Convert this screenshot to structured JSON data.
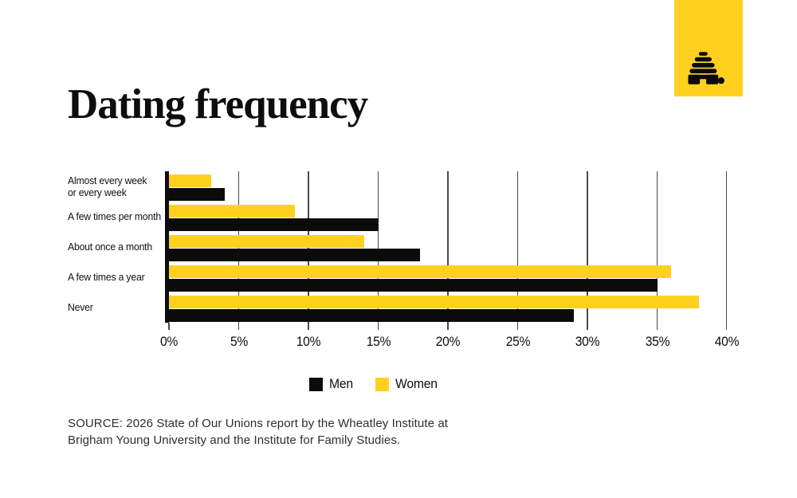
{
  "page": {
    "title": "Dating frequency",
    "source_lines": [
      "SOURCE: 2026 State of Our Unions report by the Wheatley Institute at",
      "Brigham Young University and the Institute for Family Studies."
    ],
    "logo": {
      "icon": "beehive-icon",
      "bg_color": "#FFD11E",
      "icon_color": "#0b0b0b"
    },
    "colors": {
      "accent_yellow": "#FFD11E",
      "ink_black": "#0b0b0b"
    }
  },
  "chart_data": {
    "type": "bar",
    "orientation": "horizontal",
    "title": "Dating frequency",
    "categories": [
      "Almost every week or every week",
      "A few times per month",
      "About once a month",
      "A few times a year",
      "Never"
    ],
    "category_label_lines": [
      [
        "Almost every week",
        "or every week"
      ],
      [
        "A few times per month"
      ],
      [
        "About once a month"
      ],
      [
        "A few times a year"
      ],
      [
        "Never"
      ]
    ],
    "series": [
      {
        "name": "Men",
        "color": "#0b0b0b",
        "values": [
          4,
          15,
          18,
          35,
          29
        ]
      },
      {
        "name": "Women",
        "color": "#FFD11E",
        "values": [
          3,
          9,
          14,
          36,
          38
        ]
      }
    ],
    "bar_row_order": [
      "Women",
      "Men"
    ],
    "xlabel": "",
    "ylabel": "",
    "xlim": [
      0,
      40
    ],
    "x_tick_labels": [
      "0%",
      "5%",
      "10%",
      "15%",
      "20%",
      "25%",
      "30%",
      "35%",
      "40%"
    ],
    "grid": "vertical",
    "legend_position": "bottom"
  }
}
